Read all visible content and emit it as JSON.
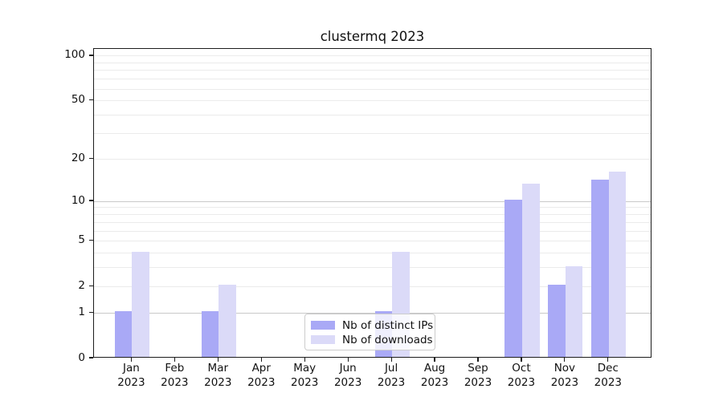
{
  "figure": {
    "background": "#ffffff"
  },
  "chart_data": {
    "type": "bar",
    "title": "clustermq 2023",
    "categories": [
      "Jan",
      "Feb",
      "Mar",
      "Apr",
      "May",
      "Jun",
      "Jul",
      "Aug",
      "Sep",
      "Oct",
      "Nov",
      "Dec"
    ],
    "year_label": "2023",
    "series": [
      {
        "name": "Nb of distinct IPs",
        "color": "#a9a9f6",
        "values": [
          1,
          0,
          1,
          0,
          0,
          0,
          1,
          0,
          0,
          10,
          2,
          14
        ]
      },
      {
        "name": "Nb of downloads",
        "color": "#dbdaf8",
        "values": [
          4,
          0,
          2,
          0,
          0,
          0,
          4,
          0,
          0,
          13,
          3,
          16
        ]
      }
    ],
    "xlabel": "",
    "ylabel": "",
    "yscale": "log1p",
    "ylim": [
      0,
      112
    ],
    "yticks": [
      0,
      1,
      2,
      5,
      10,
      20,
      50,
      100
    ],
    "major_gridlines": [
      1,
      10
    ],
    "minor_gridlines": [
      2,
      3,
      4,
      5,
      6,
      7,
      8,
      9,
      20,
      30,
      40,
      50,
      60,
      70,
      80,
      90,
      100
    ],
    "grid": "on",
    "legend_position": "lower center"
  },
  "colors": {
    "bar_distinct_ips": "#a9a9f6",
    "bar_downloads": "#dbdaf8",
    "grid_minor": "#ebebeb",
    "grid_major": "#c9c9c9",
    "spine": "#1c1c1c",
    "text": "#111111",
    "legend_border": "#cccccc"
  }
}
